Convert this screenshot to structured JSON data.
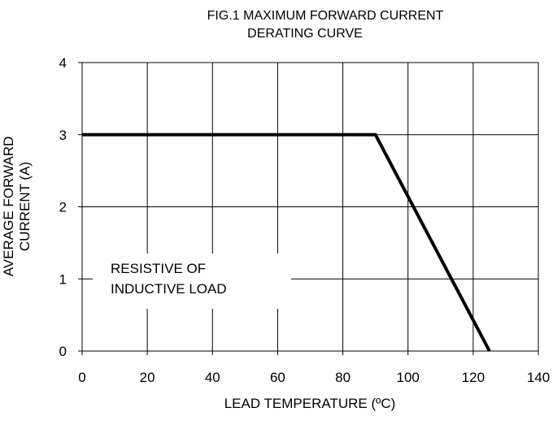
{
  "chart_data": {
    "type": "line",
    "title_lines": [
      "FIG.1 MAXIMUM FORWARD CURRENT",
      "DERATING CURVE"
    ],
    "xlabel": "LEAD TEMPERATURE (ºC)",
    "ylabel_lines": [
      "AVERAGE FORWARD",
      "CURRENT (A)"
    ],
    "xlim": [
      0,
      140
    ],
    "ylim": [
      0,
      4
    ],
    "x_ticks": [
      0,
      20,
      40,
      60,
      80,
      100,
      120,
      140
    ],
    "y_ticks": [
      0,
      1,
      2,
      3,
      4
    ],
    "grid": true,
    "series": [
      {
        "points": [
          {
            "x": 0,
            "y": 3
          },
          {
            "x": 90,
            "y": 3
          },
          {
            "x": 125,
            "y": 0
          }
        ]
      }
    ],
    "annotation_lines": [
      "RESISTIVE OF",
      "INDUCTIVE LOAD"
    ],
    "line_color": "#000000",
    "grid_color": "#000000"
  }
}
